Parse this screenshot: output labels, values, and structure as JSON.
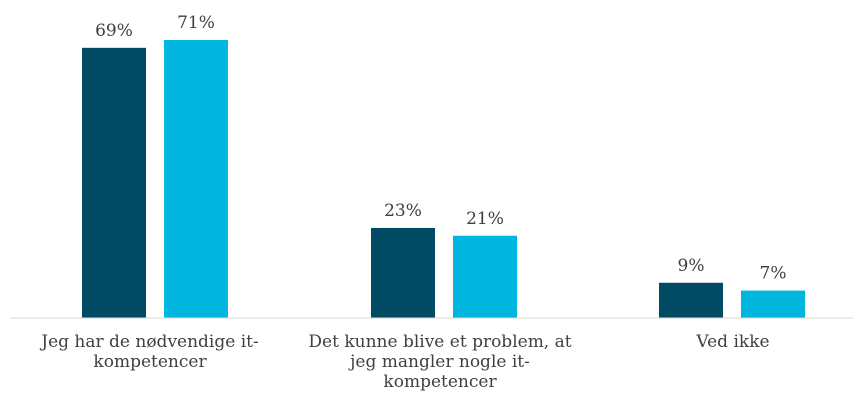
{
  "chart_data": {
    "type": "bar",
    "title": "",
    "xlabel": "",
    "ylabel": "",
    "ylim": [
      0,
      71
    ],
    "grid": false,
    "categories": [
      "Jeg har de nødvendige it-kompetencer",
      "Det kunne blive et problem, at jeg mangler nogle it-kompetencer",
      "Ved ikke"
    ],
    "category_label_lines": [
      [
        "Jeg har de nødvendige it-",
        "kompetencer"
      ],
      [
        "Det kunne blive et problem, at",
        "jeg mangler nogle it-",
        "kompetencer"
      ],
      [
        "Ved ikke"
      ]
    ],
    "series": [
      {
        "values": [
          69,
          23,
          9
        ],
        "labels": [
          "69%",
          "23%",
          "9%"
        ],
        "color": "#004b63"
      },
      {
        "values": [
          71,
          21,
          7
        ],
        "labels": [
          "71%",
          "21%",
          "7%"
        ],
        "color": "#00b6de"
      }
    ],
    "axis_color": "#d9d9d9"
  }
}
